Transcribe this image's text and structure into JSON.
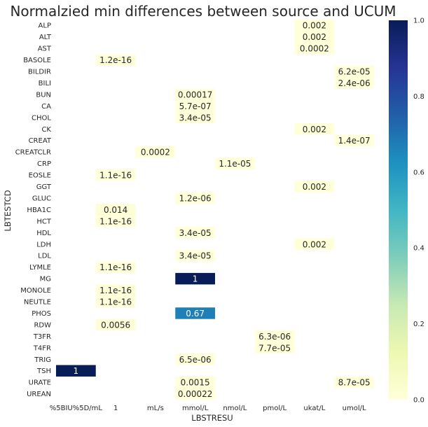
{
  "chart_data": {
    "type": "heatmap",
    "title": "Normalzied min differences between source and UCUM",
    "xlabel": "LBSTRESU",
    "ylabel": "LBTESTCD",
    "x_categories": [
      "%5BIU%5D/mL",
      "1",
      "mL/s",
      "mmol/L",
      "nmol/L",
      "pmol/L",
      "ukat/L",
      "umol/L"
    ],
    "y_categories": [
      "ALP",
      "ALT",
      "AST",
      "BASOLE",
      "BILDIR",
      "BILI",
      "BUN",
      "CA",
      "CHOL",
      "CK",
      "CREAT",
      "CREATCLR",
      "CRP",
      "EOSLE",
      "GGT",
      "GLUC",
      "HBA1C",
      "HCT",
      "HDL",
      "LDH",
      "LDL",
      "LYMLE",
      "MG",
      "MONOLE",
      "NEUTLE",
      "PHOS",
      "RDW",
      "T3FR",
      "T4FR",
      "TRIG",
      "TSH",
      "URATE",
      "UREAN"
    ],
    "cells": [
      {
        "row": "ALP",
        "col": "ukat/L",
        "value": 0.002,
        "label": "0.002"
      },
      {
        "row": "ALT",
        "col": "ukat/L",
        "value": 0.002,
        "label": "0.002"
      },
      {
        "row": "AST",
        "col": "ukat/L",
        "value": 0.0002,
        "label": "0.0002"
      },
      {
        "row": "BASOLE",
        "col": "1",
        "value": 1.2e-16,
        "label": "1.2e-16"
      },
      {
        "row": "BILDIR",
        "col": "umol/L",
        "value": 6.2e-05,
        "label": "6.2e-05"
      },
      {
        "row": "BILI",
        "col": "umol/L",
        "value": 2.4e-06,
        "label": "2.4e-06"
      },
      {
        "row": "BUN",
        "col": "mmol/L",
        "value": 0.00017,
        "label": "0.00017"
      },
      {
        "row": "CA",
        "col": "mmol/L",
        "value": 5.7e-07,
        "label": "5.7e-07"
      },
      {
        "row": "CHOL",
        "col": "mmol/L",
        "value": 3.4e-05,
        "label": "3.4e-05"
      },
      {
        "row": "CK",
        "col": "ukat/L",
        "value": 0.002,
        "label": "0.002"
      },
      {
        "row": "CREAT",
        "col": "umol/L",
        "value": 1.4e-07,
        "label": "1.4e-07"
      },
      {
        "row": "CREATCLR",
        "col": "mL/s",
        "value": 0.0002,
        "label": "0.0002"
      },
      {
        "row": "CRP",
        "col": "nmol/L",
        "value": 1.1e-05,
        "label": "1.1e-05"
      },
      {
        "row": "EOSLE",
        "col": "1",
        "value": 1.1e-16,
        "label": "1.1e-16"
      },
      {
        "row": "GGT",
        "col": "ukat/L",
        "value": 0.002,
        "label": "0.002"
      },
      {
        "row": "GLUC",
        "col": "mmol/L",
        "value": 1.2e-06,
        "label": "1.2e-06"
      },
      {
        "row": "HBA1C",
        "col": "1",
        "value": 0.014,
        "label": "0.014"
      },
      {
        "row": "HCT",
        "col": "1",
        "value": 1.1e-16,
        "label": "1.1e-16"
      },
      {
        "row": "HDL",
        "col": "mmol/L",
        "value": 3.4e-05,
        "label": "3.4e-05"
      },
      {
        "row": "LDH",
        "col": "ukat/L",
        "value": 0.002,
        "label": "0.002"
      },
      {
        "row": "LDL",
        "col": "mmol/L",
        "value": 3.4e-05,
        "label": "3.4e-05"
      },
      {
        "row": "LYMLE",
        "col": "1",
        "value": 1.1e-16,
        "label": "1.1e-16"
      },
      {
        "row": "MG",
        "col": "mmol/L",
        "value": 1,
        "label": "1"
      },
      {
        "row": "MONOLE",
        "col": "1",
        "value": 1.1e-16,
        "label": "1.1e-16"
      },
      {
        "row": "NEUTLE",
        "col": "1",
        "value": 1.1e-16,
        "label": "1.1e-16"
      },
      {
        "row": "PHOS",
        "col": "mmol/L",
        "value": 0.67,
        "label": "0.67"
      },
      {
        "row": "RDW",
        "col": "1",
        "value": 0.0056,
        "label": "0.0056"
      },
      {
        "row": "T3FR",
        "col": "pmol/L",
        "value": 6.3e-06,
        "label": "6.3e-06"
      },
      {
        "row": "T4FR",
        "col": "pmol/L",
        "value": 7.7e-05,
        "label": "7.7e-05"
      },
      {
        "row": "TRIG",
        "col": "mmol/L",
        "value": 6.5e-06,
        "label": "6.5e-06"
      },
      {
        "row": "TSH",
        "col": "%5BIU%5D/mL",
        "value": 1,
        "label": "1"
      },
      {
        "row": "URATE",
        "col": "mmol/L",
        "value": 0.0015,
        "label": "0.0015"
      },
      {
        "row": "URATE",
        "col": "umol/L",
        "value": 8.7e-05,
        "label": "8.7e-05"
      },
      {
        "row": "UREAN",
        "col": "mmol/L",
        "value": 0.00022,
        "label": "0.00022"
      }
    ],
    "colorbar": {
      "colormap": "YlGnBu",
      "range": [
        0,
        1
      ],
      "ticks": [
        0.0,
        0.2,
        0.4,
        0.6,
        0.8,
        1.0
      ],
      "tick_labels": [
        "0.0",
        "0.2",
        "0.4",
        "0.6",
        "0.8",
        "1.0"
      ]
    },
    "grid": false
  }
}
